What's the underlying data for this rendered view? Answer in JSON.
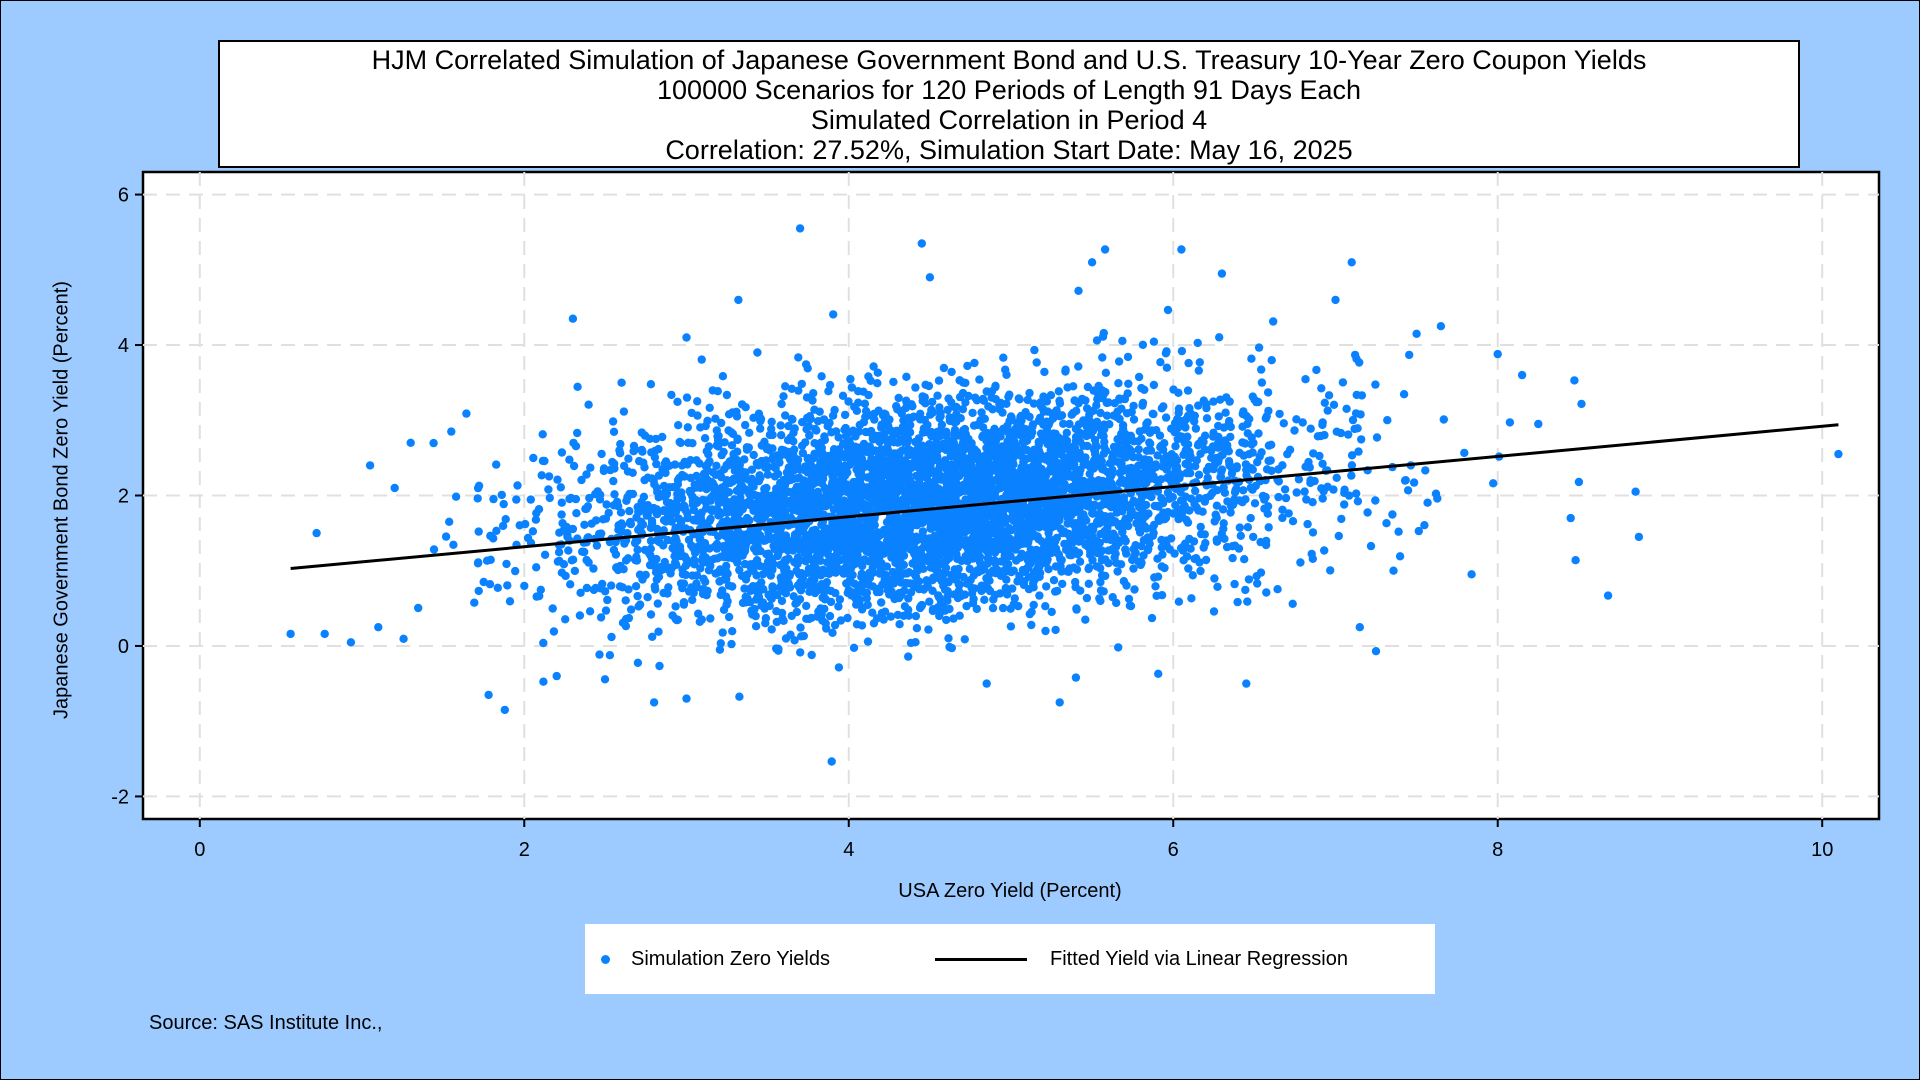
{
  "chart_data": {
    "type": "scatter",
    "title_lines": [
      "HJM Correlated Simulation of Japanese Government Bond and U.S. Treasury 10-Year Zero Coupon Yields",
      "100000 Scenarios for 120 Periods of Length 91 Days Each",
      "Simulated Correlation in Period 4",
      "Correlation: 27.52%,  Simulation Start Date:       May 16, 2025"
    ],
    "xlabel": "USA Zero Yield (Percent)",
    "ylabel": "Japanese Government Bond Zero Yield (Percent)",
    "xlim": [
      -0.35,
      10.35
    ],
    "ylim": [
      -2.3,
      6.3
    ],
    "x_ticks": [
      0,
      2,
      4,
      6,
      8,
      10
    ],
    "y_ticks": [
      -2,
      0,
      2,
      4,
      6
    ],
    "grid": true,
    "legend_position": "bottom",
    "series": [
      {
        "name": "Simulation Zero Yields",
        "kind": "scatter",
        "color": "#0a82ff",
        "scenario_count": 100000,
        "center": [
          4.5,
          1.9
        ],
        "sd": [
          1.05,
          0.72
        ],
        "correlation": 0.2752,
        "sample_points": [
          [
            0.56,
            0.16
          ],
          [
            0.72,
            1.5
          ],
          [
            0.77,
            0.16
          ],
          [
            1.05,
            2.4
          ],
          [
            1.1,
            0.25
          ],
          [
            1.78,
            -0.65
          ],
          [
            1.88,
            -0.85
          ],
          [
            1.3,
            2.7
          ],
          [
            2.3,
            4.35
          ],
          [
            2.6,
            3.5
          ],
          [
            3.0,
            4.1
          ],
          [
            3.32,
            4.6
          ],
          [
            3.7,
            5.55
          ],
          [
            4.45,
            5.35
          ],
          [
            4.5,
            4.9
          ],
          [
            5.5,
            5.1
          ],
          [
            5.58,
            5.27
          ],
          [
            6.05,
            5.27
          ],
          [
            6.3,
            4.95
          ],
          [
            7.1,
            5.1
          ],
          [
            7.0,
            4.6
          ],
          [
            7.5,
            4.15
          ],
          [
            7.65,
            4.25
          ],
          [
            8.0,
            3.88
          ],
          [
            8.15,
            3.6
          ],
          [
            8.25,
            2.95
          ],
          [
            8.45,
            1.7
          ],
          [
            8.48,
            1.14
          ],
          [
            8.5,
            2.18
          ],
          [
            8.68,
            0.67
          ],
          [
            8.85,
            2.05
          ],
          [
            8.87,
            1.45
          ],
          [
            10.1,
            2.55
          ],
          [
            7.25,
            -0.07
          ],
          [
            7.15,
            0.25
          ],
          [
            5.3,
            -0.75
          ],
          [
            5.4,
            -0.42
          ],
          [
            6.45,
            -0.5
          ],
          [
            4.85,
            -0.5
          ],
          [
            3.0,
            -0.7
          ],
          [
            2.8,
            -0.75
          ],
          [
            2.2,
            -0.4
          ],
          [
            1.75,
            0.85
          ],
          [
            1.55,
            2.85
          ]
        ]
      },
      {
        "name": "Fitted Yield via Linear Regression",
        "kind": "line",
        "color": "#000000",
        "x": [
          0.56,
          10.1
        ],
        "y": [
          1.03,
          2.94
        ]
      }
    ],
    "source": "Source: SAS Institute Inc.,"
  }
}
